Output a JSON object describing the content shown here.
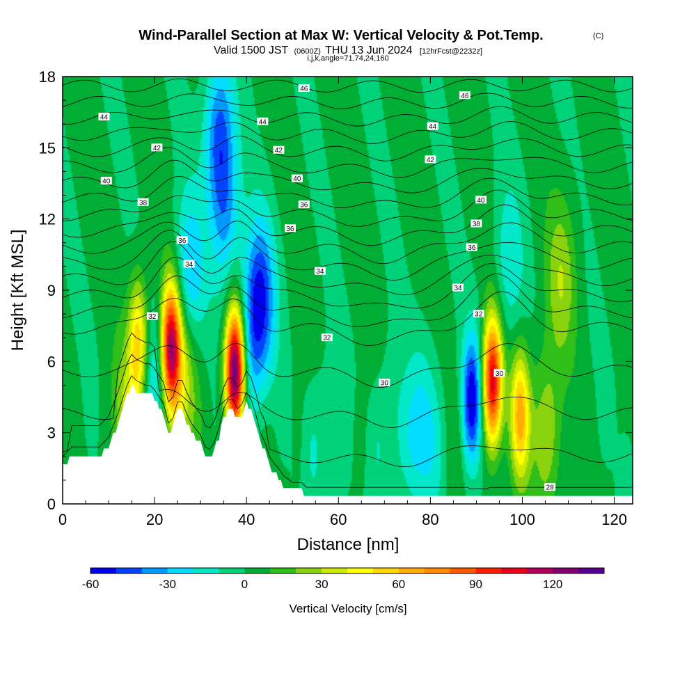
{
  "title": {
    "main": "Wind-Parallel Section at Max W: Vertical Velocity & Pot.Temp.",
    "copyright": "(C)",
    "valid_prefix": "Valid 1500 JST",
    "utc": "(0600Z)",
    "valid_suffix": "THU 13 Jun 2024",
    "forecast": "[12hrFcst@2232z]",
    "indices": "i,j,k,angle=71,74,24,160"
  },
  "chart_data": {
    "type": "heatmap",
    "xlabel": "Distance [nm]",
    "ylabel": "Height [Kft MSL]",
    "xlim": [
      0,
      124
    ],
    "ylim": [
      0,
      18
    ],
    "x_ticks": [
      0,
      20,
      40,
      60,
      80,
      100,
      120
    ],
    "y_ticks": [
      0,
      3,
      6,
      9,
      12,
      15,
      18
    ],
    "x_tick_labels": [
      "0",
      "20",
      "40",
      "60",
      "80",
      "100",
      "120"
    ],
    "y_tick_labels": [
      "0",
      "3",
      "6",
      "9",
      "12",
      "15",
      "18"
    ],
    "colorbar": {
      "label": "Vertical Velocity [cm/s]",
      "min": -60,
      "max": 140,
      "step": 10,
      "tick_values": [
        -60,
        -30,
        0,
        30,
        60,
        90,
        120
      ],
      "tick_labels": [
        "-60",
        "-30",
        "0",
        "30",
        "60",
        "90",
        "120"
      ],
      "colors": [
        "#0000ee",
        "#0044ff",
        "#0099ff",
        "#00ddff",
        "#00e8c8",
        "#00d27a",
        "#00ad35",
        "#30be18",
        "#8ad20e",
        "#ccea00",
        "#ffff00",
        "#ffd800",
        "#ffad00",
        "#ff8a00",
        "#ff5a00",
        "#ff1f00",
        "#e8001a",
        "#b0005a",
        "#840070",
        "#5a0090"
      ]
    },
    "background_w": 2,
    "updrafts": [
      {
        "x": 16.5,
        "z": 6.8,
        "peak_w": 55
      },
      {
        "x": 23.5,
        "z": 6.6,
        "peak_w": 110
      },
      {
        "x": 26.0,
        "z": 5.4,
        "peak_w": 35
      },
      {
        "x": 37.5,
        "z": 5.6,
        "peak_w": 140
      },
      {
        "x": 93.5,
        "z": 5.2,
        "peak_w": 105
      },
      {
        "x": 99.5,
        "z": 3.8,
        "peak_w": 60
      },
      {
        "x": 105.0,
        "z": 3.0,
        "peak_w": 28
      },
      {
        "x": 108.5,
        "z": 9.5,
        "peak_w": 25
      },
      {
        "x": 14.0,
        "z": 3.2,
        "peak_w": 30
      }
    ],
    "downdrafts": [
      {
        "x": 20.0,
        "z": 4.6,
        "peak_w": -25
      },
      {
        "x": 27.5,
        "z": 9.5,
        "peak_w": -35
      },
      {
        "x": 34.0,
        "z": 15.5,
        "peak_w": -45
      },
      {
        "x": 35.5,
        "z": 12.0,
        "peak_w": -30
      },
      {
        "x": 43.0,
        "z": 8.6,
        "peak_w": -50
      },
      {
        "x": 40.5,
        "z": 6.5,
        "peak_w": -25
      },
      {
        "x": 78.5,
        "z": 3.0,
        "peak_w": -30
      },
      {
        "x": 89.0,
        "z": 4.4,
        "peak_w": -60
      },
      {
        "x": 97.0,
        "z": 10.0,
        "peak_w": -20
      },
      {
        "x": 57.0,
        "z": 2.5,
        "peak_w": -15
      },
      {
        "x": 71.5,
        "z": 2.8,
        "peak_w": -18
      }
    ],
    "terrain_profile": {
      "x": [
        0,
        2,
        8,
        10,
        12,
        13,
        14,
        15,
        16,
        18,
        19,
        20,
        22,
        23,
        24,
        25,
        26,
        27,
        28,
        30,
        31,
        32,
        33,
        34,
        35,
        36,
        37,
        38,
        39,
        40,
        41,
        42,
        43,
        44,
        45,
        46,
        47,
        48,
        50,
        52,
        53,
        55,
        60,
        70,
        80,
        90,
        100,
        110,
        120,
        124
      ],
      "z": [
        1.6,
        2.0,
        2.0,
        2.4,
        3.4,
        4.0,
        4.6,
        5.0,
        4.8,
        4.6,
        4.6,
        4.4,
        3.8,
        3.0,
        3.2,
        3.9,
        3.9,
        3.4,
        3.0,
        2.5,
        2.0,
        1.9,
        2.2,
        2.8,
        3.6,
        4.0,
        4.0,
        3.6,
        3.8,
        4.3,
        4.0,
        3.4,
        2.6,
        2.2,
        1.6,
        1.3,
        1.1,
        0.8,
        0.5,
        0.5,
        0.3,
        0.3,
        0.3,
        0.3,
        0.3,
        0.3,
        0.3,
        0.3,
        0.3,
        0.3
      ]
    },
    "isentrope_levels": [
      28,
      29,
      30,
      31,
      32,
      33,
      34,
      35,
      36,
      37,
      38,
      39,
      40,
      41,
      42,
      43,
      44,
      45,
      46,
      47
    ],
    "isentrope_labels": [
      {
        "value": "46",
        "x": 52.5,
        "z": 17.5
      },
      {
        "value": "46",
        "x": 87.5,
        "z": 17.2
      },
      {
        "value": "44",
        "x": 9.0,
        "z": 16.3
      },
      {
        "value": "44",
        "x": 43.5,
        "z": 16.1
      },
      {
        "value": "44",
        "x": 80.5,
        "z": 15.9
      },
      {
        "value": "42",
        "x": 20.5,
        "z": 15.0
      },
      {
        "value": "42",
        "x": 47.0,
        "z": 14.9
      },
      {
        "value": "42",
        "x": 80.0,
        "z": 14.5
      },
      {
        "value": "40",
        "x": 9.5,
        "z": 13.6
      },
      {
        "value": "40",
        "x": 51.0,
        "z": 13.7
      },
      {
        "value": "40",
        "x": 91.0,
        "z": 12.8
      },
      {
        "value": "38",
        "x": 17.5,
        "z": 12.7
      },
      {
        "value": "38",
        "x": 90.0,
        "z": 11.8
      },
      {
        "value": "36",
        "x": 52.5,
        "z": 12.6
      },
      {
        "value": "36",
        "x": 49.5,
        "z": 11.6
      },
      {
        "value": "36",
        "x": 89.0,
        "z": 10.8
      },
      {
        "value": "36",
        "x": 26.0,
        "z": 11.1
      },
      {
        "value": "34",
        "x": 27.5,
        "z": 10.1
      },
      {
        "value": "34",
        "x": 56.0,
        "z": 9.8
      },
      {
        "value": "34",
        "x": 86.0,
        "z": 9.1
      },
      {
        "value": "32",
        "x": 19.5,
        "z": 7.9
      },
      {
        "value": "32",
        "x": 57.5,
        "z": 7.0
      },
      {
        "value": "32",
        "x": 90.5,
        "z": 8.0
      },
      {
        "value": "30",
        "x": 70.0,
        "z": 5.1
      },
      {
        "value": "30",
        "x": 95.0,
        "z": 5.5
      },
      {
        "value": "28",
        "x": 106.0,
        "z": 0.7
      }
    ]
  }
}
